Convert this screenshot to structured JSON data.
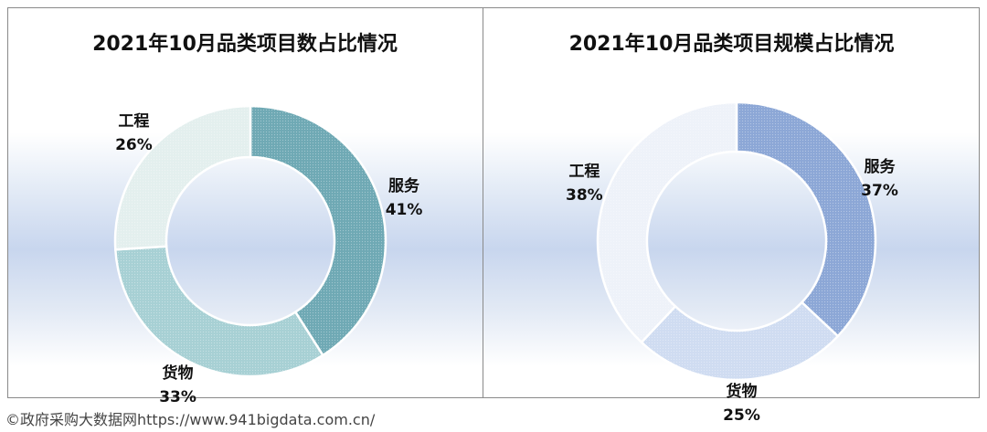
{
  "chart_data": [
    {
      "type": "pie",
      "donut": true,
      "title": "2021年10月品类项目数占比情况",
      "categories": [
        "服务",
        "货物",
        "工程"
      ],
      "values": [
        41,
        33,
        26
      ],
      "value_labels": [
        "41%",
        "33%",
        "26%"
      ],
      "colors": [
        "#6fa9b4",
        "#a7d0d4",
        "#e3efee"
      ]
    },
    {
      "type": "pie",
      "donut": true,
      "title": "2021年10月品类项目规模占比情况",
      "categories": [
        "服务",
        "货物",
        "工程"
      ],
      "values": [
        37,
        25,
        38
      ],
      "value_labels": [
        "37%",
        "25%",
        "38%"
      ],
      "colors": [
        "#8ca7d6",
        "#cfdcf1",
        "#eef2f9"
      ]
    }
  ],
  "source": "©政府采购大数据网https://www.941bigdata.com.cn/"
}
